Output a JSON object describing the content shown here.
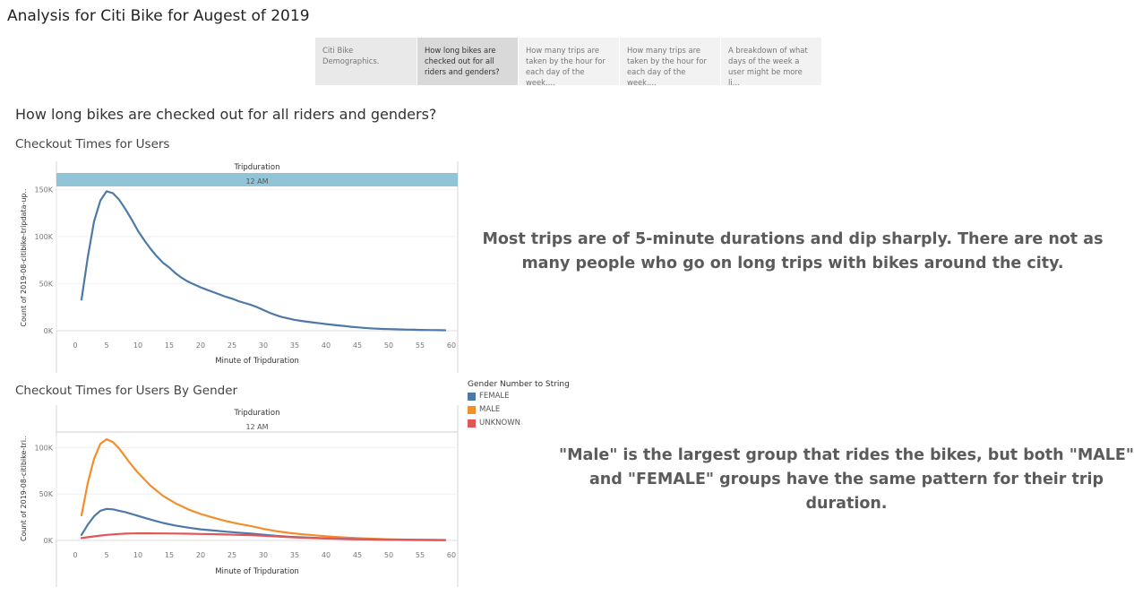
{
  "story": {
    "title": "Analysis for Citi Bike for Augest of 2019"
  },
  "tabs": [
    {
      "label": "Citi Bike Demographics.",
      "active": false
    },
    {
      "label": "How long bikes are checked out for all riders and genders?",
      "active": true
    },
    {
      "label": "How many trips are taken by the hour for each day of the week,...",
      "active": false
    },
    {
      "label": "How many trips are taken by the hour for each day of the week,...",
      "active": false
    },
    {
      "label": "A breakdown of what days of the week a user might be more li...",
      "active": false
    }
  ],
  "dashboard": {
    "title": "How long bikes are checked out for all riders and genders?"
  },
  "captions": {
    "top": "Most trips are of 5-minute durations and dip sharply. There are not as many people who go on long trips with bikes around the city.",
    "bottom": "\"Male\" is the largest group that rides the bikes, but both \"MALE\" and \"FEMALE\" groups have the same pattern for their trip duration."
  },
  "legend": {
    "title": "Gender Number to String",
    "items": [
      {
        "label": "FEMALE",
        "color": "#4e79a7"
      },
      {
        "label": "MALE",
        "color": "#f28e2b"
      },
      {
        "label": "UNKNOWN",
        "color": "#e15759"
      }
    ]
  },
  "chart_data": [
    {
      "type": "line",
      "title": "Checkout Times for Users",
      "header": "Tripduration",
      "panel_label": "12 AM",
      "xlabel": "Minute of Tripduration",
      "ylabel": "Count of 2019-08-citibike-tripdata-up..",
      "xlim": [
        -3,
        61
      ],
      "ylim": [
        0,
        155000
      ],
      "xticks": [
        0,
        5,
        10,
        15,
        20,
        25,
        30,
        35,
        40,
        45,
        50,
        55,
        60
      ],
      "yticks": [
        0,
        50000,
        100000,
        150000
      ],
      "ytick_labels": [
        "0K",
        "50K",
        "100K",
        "150K"
      ],
      "grid": true,
      "series": [
        {
          "color": "#4e79a7",
          "x": [
            1,
            2,
            3,
            4,
            5,
            6,
            7,
            8,
            9,
            10,
            11,
            12,
            13,
            14,
            15,
            16,
            17,
            18,
            19,
            20,
            21,
            22,
            23,
            24,
            25,
            26,
            27,
            28,
            29,
            30,
            31,
            32,
            33,
            34,
            35,
            36,
            37,
            38,
            39,
            40,
            41,
            42,
            43,
            44,
            45,
            46,
            47,
            48,
            49,
            50,
            51,
            52,
            53,
            54,
            55,
            56,
            57,
            58,
            59
          ],
          "y": [
            33000,
            78000,
            116000,
            138000,
            148000,
            146000,
            139000,
            129000,
            118000,
            106000,
            96000,
            87000,
            79000,
            72000,
            67000,
            61000,
            56000,
            52000,
            49000,
            46000,
            43500,
            41000,
            38500,
            36000,
            34000,
            31500,
            29500,
            27500,
            25000,
            22000,
            19000,
            16500,
            14500,
            13000,
            11500,
            10500,
            9500,
            8700,
            7900,
            7000,
            6300,
            5600,
            4900,
            4200,
            3600,
            3000,
            2600,
            2200,
            1900,
            1700,
            1500,
            1300,
            1100,
            1000,
            900,
            800,
            700,
            600,
            500
          ]
        }
      ]
    },
    {
      "type": "line",
      "title": "Checkout Times for Users By Gender",
      "header": "Tripduration",
      "panel_label": "12 AM",
      "xlabel": "Minute of Tripduration",
      "ylabel": "Count of 2019-08-citibike-tri..",
      "xlim": [
        -3,
        61
      ],
      "ylim": [
        0,
        112000
      ],
      "xticks": [
        0,
        5,
        10,
        15,
        20,
        25,
        30,
        35,
        40,
        45,
        50,
        55,
        60
      ],
      "yticks": [
        0,
        50000,
        100000
      ],
      "ytick_labels": [
        "0K",
        "50K",
        "100K"
      ],
      "grid": true,
      "series": [
        {
          "name": "MALE",
          "color": "#f28e2b",
          "x": [
            1,
            2,
            3,
            4,
            5,
            6,
            7,
            8,
            9,
            10,
            12,
            14,
            16,
            18,
            20,
            22,
            24,
            26,
            28,
            30,
            32,
            34,
            36,
            38,
            40,
            42,
            44,
            46,
            48,
            50,
            52,
            54,
            56,
            58,
            59
          ],
          "y": [
            27000,
            62000,
            88000,
            104000,
            109000,
            106000,
            99000,
            90000,
            81000,
            73000,
            59000,
            48000,
            40000,
            33500,
            28500,
            24500,
            21000,
            18000,
            15500,
            12500,
            10000,
            8200,
            6800,
            5600,
            4500,
            3600,
            2800,
            2200,
            1700,
            1300,
            1000,
            800,
            600,
            500,
            400
          ]
        },
        {
          "name": "FEMALE",
          "color": "#4e79a7",
          "x": [
            1,
            2,
            3,
            4,
            5,
            6,
            7,
            8,
            9,
            10,
            12,
            14,
            16,
            18,
            20,
            22,
            24,
            26,
            28,
            30,
            32,
            34,
            36,
            38,
            40,
            42,
            44,
            46,
            48,
            50,
            52,
            54,
            56,
            58,
            59
          ],
          "y": [
            6000,
            17000,
            26000,
            32000,
            34000,
            33500,
            32000,
            30500,
            28500,
            26500,
            22500,
            18800,
            16000,
            13800,
            12000,
            10700,
            9500,
            8400,
            7300,
            6200,
            5000,
            4100,
            3400,
            2800,
            2300,
            1900,
            1500,
            1200,
            1000,
            800,
            600,
            500,
            400,
            300,
            300
          ]
        },
        {
          "name": "UNKNOWN",
          "color": "#e15759",
          "x": [
            1,
            2,
            3,
            4,
            5,
            6,
            7,
            8,
            9,
            10,
            12,
            14,
            16,
            18,
            20,
            22,
            24,
            26,
            28,
            30,
            32,
            34,
            36,
            38,
            40,
            42,
            44,
            46,
            48,
            50,
            52,
            54,
            56,
            58,
            59
          ],
          "y": [
            2500,
            3500,
            4300,
            5200,
            6000,
            6500,
            7000,
            7300,
            7500,
            7600,
            7600,
            7500,
            7400,
            7200,
            7000,
            6800,
            6400,
            6000,
            5600,
            5000,
            4300,
            3600,
            3000,
            2500,
            2000,
            1700,
            1400,
            1200,
            1000,
            900,
            800,
            700,
            600,
            500,
            500
          ]
        }
      ]
    }
  ]
}
